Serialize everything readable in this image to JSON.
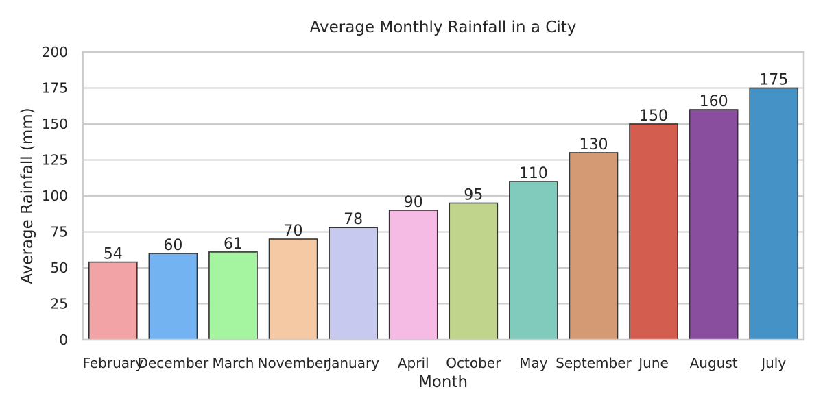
{
  "chart_data": {
    "type": "bar",
    "title": "Average Monthly Rainfall in a City",
    "xlabel": "Month",
    "ylabel": "Average Rainfall (mm)",
    "categories": [
      "February",
      "December",
      "March",
      "November",
      "January",
      "April",
      "October",
      "May",
      "September",
      "June",
      "August",
      "July"
    ],
    "values": [
      54,
      60,
      61,
      70,
      78,
      90,
      95,
      110,
      130,
      150,
      160,
      175
    ],
    "colors": [
      "#f2a3a5",
      "#73b3f1",
      "#a5f5a0",
      "#f4c9a3",
      "#c8c9ee",
      "#f6bbe4",
      "#c0d58b",
      "#81cbbd",
      "#d39a73",
      "#d35d4f",
      "#8a4e9f",
      "#4593c6"
    ],
    "ylim": [
      0,
      200
    ],
    "yticks": [
      0,
      25,
      50,
      75,
      100,
      125,
      150,
      175,
      200
    ],
    "grid": true,
    "legend": "none"
  }
}
